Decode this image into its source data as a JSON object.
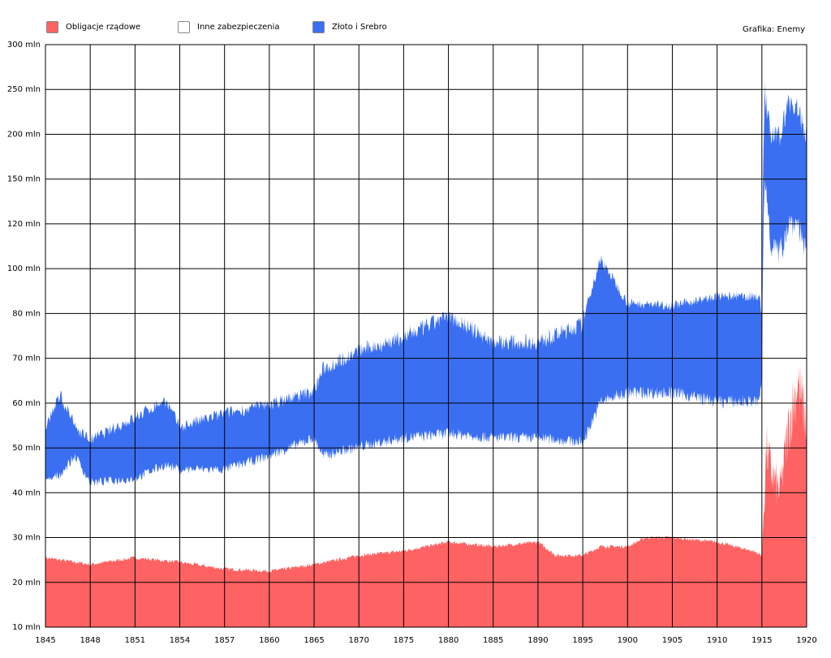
{
  "chart_data": {
    "type": "area",
    "title": "",
    "credit": "Grafika: Enemy",
    "xlabel": "",
    "ylabel": "",
    "grid": true,
    "legend_placement": "top-left",
    "x_ticks": [
      "1845",
      "1848",
      "1851",
      "1854",
      "1857",
      "1860",
      "1865",
      "1870",
      "1875",
      "1880",
      "1885",
      "1890",
      "1895",
      "1900",
      "1905",
      "1910",
      "1915",
      "1920"
    ],
    "y_ticks": [
      "300 mln",
      "250 mln",
      "200 mln",
      "150 mln",
      "120 mln",
      "100 mln",
      "80 mln",
      "70 mln",
      "60 mln",
      "50 mln",
      "40 mln",
      "30 mln",
      "20 mln",
      "10 mln"
    ],
    "y_tick_values": [
      300,
      250,
      200,
      150,
      120,
      100,
      80,
      70,
      60,
      50,
      40,
      30,
      20,
      10
    ],
    "x_tick_values": [
      1845,
      1848,
      1851,
      1854,
      1857,
      1860,
      1865,
      1870,
      1875,
      1880,
      1885,
      1890,
      1895,
      1900,
      1905,
      1910,
      1915,
      1920
    ],
    "ylim": [
      10,
      300
    ],
    "xlim": [
      1845,
      1920
    ],
    "unit": "mln",
    "legend": [
      {
        "name": "Obligacje rządowe",
        "color": "#ff6262"
      },
      {
        "name": "Inne zabezpieczenia",
        "color": "#ffffff"
      },
      {
        "name": "Złoto i Srebro",
        "color": "#3b6ff2"
      }
    ],
    "series": [
      {
        "name": "Obligacje rządowe",
        "color": "#ff6262",
        "x": [
          1845,
          1848,
          1851,
          1854,
          1857,
          1860,
          1865,
          1870,
          1875,
          1880,
          1885,
          1890,
          1892,
          1895,
          1897,
          1900,
          1902,
          1905,
          1910,
          1914,
          1915,
          1915.5,
          1916,
          1917,
          1918,
          1919,
          1920
        ],
        "values": [
          25.5,
          24,
          25.5,
          24.5,
          23,
          22.5,
          24,
          26,
          27,
          29,
          28,
          29,
          26,
          26,
          28,
          28,
          30,
          30,
          29,
          27,
          26,
          50,
          45,
          40,
          55,
          65,
          55
        ]
      },
      {
        "name": "Złoto i Srebro",
        "color": "#3b6ff2",
        "x": [
          1845,
          1846,
          1847,
          1848,
          1851,
          1853,
          1854,
          1857,
          1860,
          1865,
          1866,
          1870,
          1875,
          1880,
          1885,
          1890,
          1895,
          1897,
          1900,
          1905,
          1910,
          1914.7,
          1915,
          1915.3,
          1916,
          1917,
          1918,
          1919,
          1920
        ],
        "low": [
          42,
          44,
          48,
          42,
          43,
          46,
          45,
          45,
          48,
          52,
          48,
          50,
          52,
          53,
          52,
          52,
          51,
          60,
          62,
          62,
          60,
          60,
          65,
          150,
          110,
          105,
          120,
          120,
          105
        ],
        "high": [
          55,
          62,
          55,
          52,
          57,
          61,
          55,
          58,
          60,
          63,
          68,
          72,
          75,
          80,
          74,
          74,
          78,
          105,
          85,
          84,
          88,
          88,
          80,
          250,
          200,
          200,
          240,
          230,
          200
        ]
      }
    ]
  }
}
